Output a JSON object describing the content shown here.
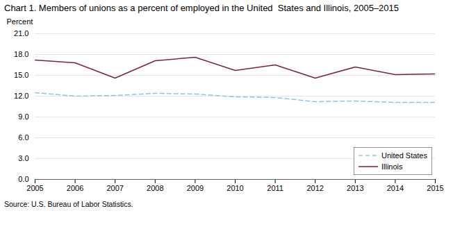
{
  "chart_data": {
    "type": "line",
    "title": "Chart 1. Members of unions as a percent of employed in the United  States and Illinois, 2005–2015",
    "y_label": "Percent",
    "source": "Source: U.S. Bureau of Labor Statistics.",
    "x": [
      2005,
      2006,
      2007,
      2008,
      2009,
      2010,
      2011,
      2012,
      2013,
      2014,
      2015
    ],
    "series": [
      {
        "name": "United States",
        "color": "#92c5de",
        "line_style": "dashed",
        "values": [
          12.5,
          12.0,
          12.1,
          12.4,
          12.3,
          11.9,
          11.8,
          11.2,
          11.3,
          11.1,
          11.1
        ]
      },
      {
        "name": "Illinois",
        "color": "#7b2150",
        "line_style": "solid",
        "values": [
          17.2,
          16.8,
          14.6,
          17.1,
          17.6,
          15.7,
          16.5,
          14.6,
          16.2,
          15.1,
          15.2
        ]
      }
    ],
    "xlim": [
      2005,
      2015
    ],
    "xticks": [
      2005,
      2006,
      2007,
      2008,
      2009,
      2010,
      2011,
      2012,
      2013,
      2014,
      2015
    ],
    "ylim": [
      0,
      21.0
    ],
    "yticks": [
      {
        "value": 0,
        "label": "0.0"
      },
      {
        "value": 3,
        "label": "3.0"
      },
      {
        "value": 6,
        "label": "6.0"
      },
      {
        "value": 9,
        "label": "9.0"
      },
      {
        "value": 12,
        "label": "12.0"
      },
      {
        "value": 15,
        "label": "15.0"
      },
      {
        "value": 18,
        "label": "18.0"
      },
      {
        "value": 21,
        "label": "21.0"
      }
    ],
    "grid": true,
    "legend": "lower right"
  }
}
